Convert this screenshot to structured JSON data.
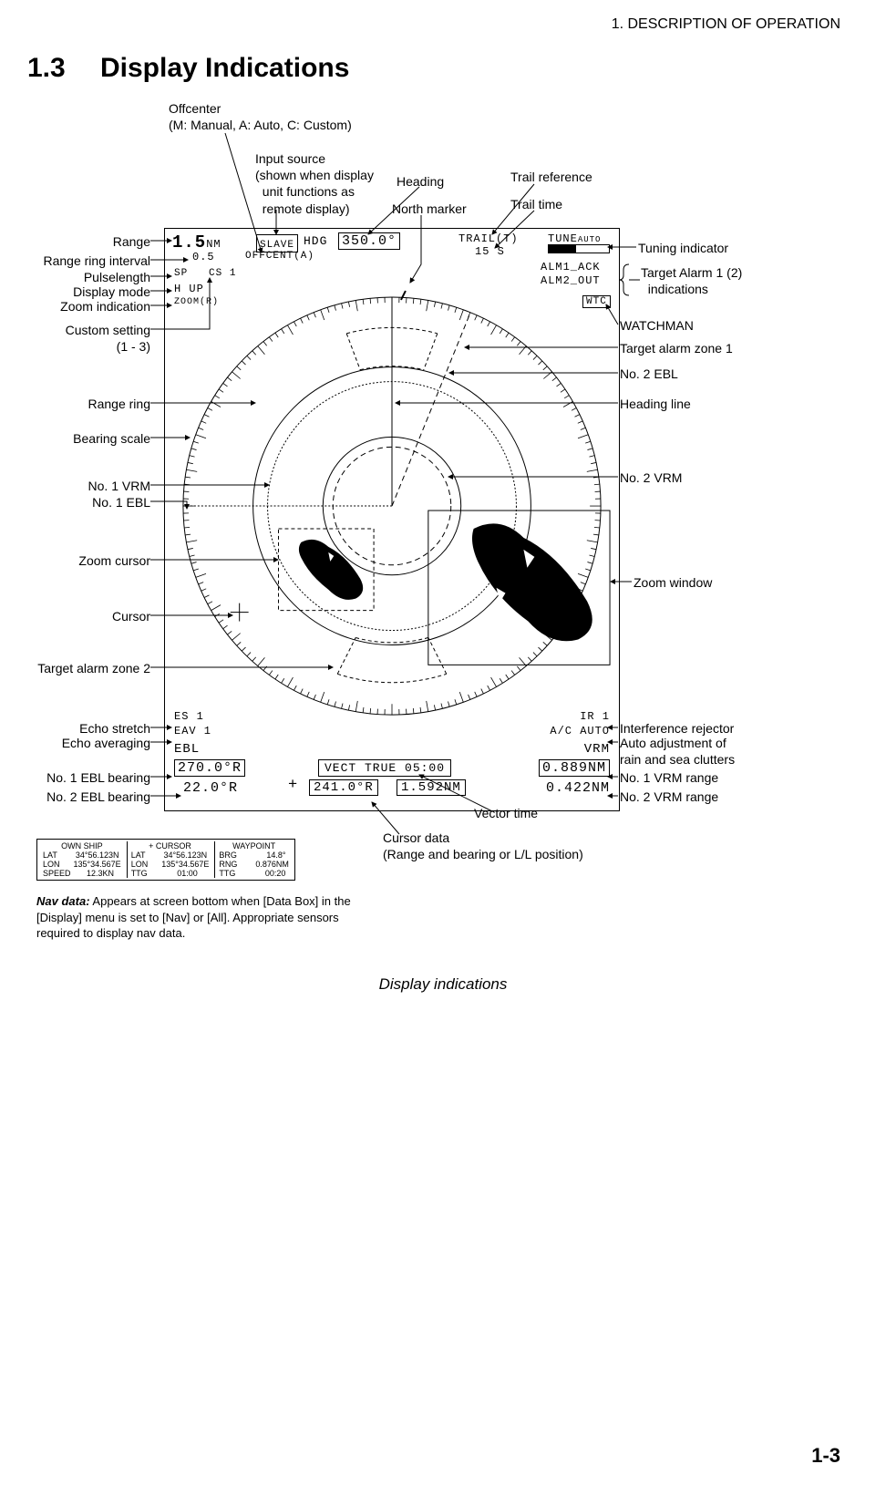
{
  "header": {
    "chapter": "1.  DESCRIPTION OF OPERATION"
  },
  "section": {
    "number": "1.3",
    "title": "Display Indications"
  },
  "caption": "Display indications",
  "page": "1-3",
  "labels": {
    "offcenter_title": "Offcenter",
    "offcenter_sub": "(M: Manual, A: Auto, C: Custom)",
    "input_source_l1": "Input source",
    "input_source_l2": "(shown when display",
    "input_source_l3": "unit functions as",
    "input_source_l4": "remote display)",
    "heading": "Heading",
    "north_marker": "North marker",
    "trail_ref": "Trail reference",
    "trail_time": "Trail time",
    "range": "Range",
    "range_ring_interval": "Range ring interval",
    "pulselength": "Pulselength",
    "display_mode": "Display mode",
    "zoom_indication": "Zoom indication",
    "custom_setting_l1": "Custom setting",
    "custom_setting_l2": "(1 - 3)",
    "range_ring": "Range ring",
    "bearing_scale": "Bearing scale",
    "no1_vrm": "No. 1 VRM",
    "no1_ebl": "No. 1 EBL",
    "zoom_cursor": "Zoom cursor",
    "cursor": "Cursor",
    "target_alarm_zone2": "Target alarm zone 2",
    "echo_stretch": "Echo stretch",
    "echo_averaging": "Echo averaging",
    "no1_ebl_bearing": "No. 1 EBL bearing",
    "no2_ebl_bearing": "No. 2 EBL bearing",
    "tuning_indicator": "Tuning indicator",
    "target_alarm_l1": "Target Alarm 1 (2)",
    "target_alarm_l2": "indications",
    "watchman": "WATCHMAN",
    "target_alarm_zone1": "Target alarm zone 1",
    "no2_ebl": "No. 2 EBL",
    "heading_line": "Heading line",
    "no2_vrm": "No. 2 VRM",
    "zoom_window": "Zoom window",
    "ir": "Interference rejector",
    "auto_adj_l1": "Auto adjustment of",
    "auto_adj_l2": "rain and sea clutters",
    "no1_vrm_range": "No. 1 VRM range",
    "no2_vrm_range": "No. 2 VRM range",
    "vector_time": "Vector time",
    "cursor_data_l1": "Cursor data",
    "cursor_data_l2": "(Range and bearing or L/L position)"
  },
  "screen": {
    "range": "1.5",
    "range_unit": "NM",
    "slave": "SLAVE",
    "hdg_label": "HDG",
    "hdg_value": "350.0°",
    "trail_label": "TRAIL(T)",
    "trail_time": "15 S",
    "tune": "TUNE",
    "tune_mode": "AUTO",
    "range_ring_int": "0.5",
    "offcent": "OFFCENT(A)",
    "alm1": "ALM1_ACK",
    "alm2": "ALM2_OUT",
    "wtc": "WTC",
    "sp": "SP",
    "cs": "CS 1",
    "hup": "H UP",
    "zoom": "ZOOM(R)",
    "es": "ES 1",
    "eav": "EAV 1",
    "ebl_label": "EBL",
    "ebl1": "270.0°R",
    "ebl2": "22.0°R",
    "vect": "VECT TRUE 05:00",
    "cursor_brg": "241.0°R",
    "cursor_rng": "1.592NM",
    "ir": "IR 1",
    "ac": "A/C AUTO",
    "vrm_label": "VRM",
    "vrm1": "0.889NM",
    "vrm2": "0.422NM",
    "plus": "+"
  },
  "nav": {
    "ownship_hdr": "OWN SHIP",
    "cursor_hdr": "+ CURSOR",
    "waypoint_hdr": "WAYPOINT",
    "own": {
      "lat_l": "LAT",
      "lat": "34°56.123N",
      "lon_l": "LON",
      "lon": "135°34.567E",
      "spd_l": "SPEED",
      "spd": "12.3KN"
    },
    "cur": {
      "lat_l": "LAT",
      "lat": "34°56.123N",
      "lon_l": "LON",
      "lon": "135°34.567E",
      "ttg_l": "TTG",
      "ttg": "01:00"
    },
    "wpt": {
      "brg_l": "BRG",
      "brg": "14.8°",
      "rng_l": "RNG",
      "rng": "0.876NM",
      "ttg_l": "TTG",
      "ttg": "00:20"
    }
  },
  "nav_note": {
    "lead": "Nav data:",
    "body": " Appears at screen bottom when [Data Box] in the [Display] menu is set to [Nav] or [All]. Appropriate sensors required to display nav data."
  }
}
